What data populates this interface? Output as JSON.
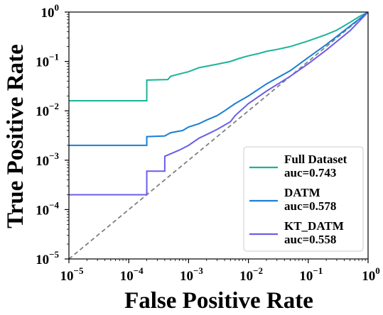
{
  "chart_data": {
    "type": "line",
    "xscale": "log",
    "yscale": "log",
    "xlim": [
      1e-05,
      1
    ],
    "ylim": [
      1e-05,
      1
    ],
    "xlabel": "False Positive Rate",
    "ylabel": "True Positive Rate",
    "tick_values": [
      1e-05,
      0.0001,
      0.001,
      0.01,
      0.1,
      1
    ],
    "tick_labels": [
      {
        "base": "10",
        "exp": "−5"
      },
      {
        "base": "10",
        "exp": "−4"
      },
      {
        "base": "10",
        "exp": "−3"
      },
      {
        "base": "10",
        "exp": "−2"
      },
      {
        "base": "10",
        "exp": "−1"
      },
      {
        "base": "10",
        "exp": "0"
      }
    ],
    "grid": false,
    "legend_position": "bottom-right",
    "diagonal": {
      "style": "dashed",
      "color": "#808080",
      "points": [
        [
          1e-05,
          1e-05
        ],
        [
          1,
          1
        ]
      ]
    },
    "series": [
      {
        "name": "Full Dataset",
        "auc_label": "auc=0.743",
        "color": "#1ab39a",
        "points": [
          [
            1e-05,
            0.016
          ],
          [
            0.0002,
            0.016
          ],
          [
            0.0002,
            0.042
          ],
          [
            0.00045,
            0.043
          ],
          [
            0.0005,
            0.05
          ],
          [
            0.0008,
            0.058
          ],
          [
            0.001,
            0.062
          ],
          [
            0.0015,
            0.075
          ],
          [
            0.002,
            0.08
          ],
          [
            0.003,
            0.088
          ],
          [
            0.005,
            0.1
          ],
          [
            0.007,
            0.115
          ],
          [
            0.01,
            0.13
          ],
          [
            0.015,
            0.145
          ],
          [
            0.02,
            0.16
          ],
          [
            0.03,
            0.175
          ],
          [
            0.05,
            0.2
          ],
          [
            0.1,
            0.26
          ],
          [
            0.2,
            0.35
          ],
          [
            0.3,
            0.43
          ],
          [
            0.5,
            0.62
          ],
          [
            0.7,
            0.8
          ],
          [
            1,
            1
          ]
        ]
      },
      {
        "name": "DATM",
        "auc_label": "auc=0.578",
        "color": "#1a7fd4",
        "points": [
          [
            1e-05,
            0.002
          ],
          [
            0.0002,
            0.002
          ],
          [
            0.0002,
            0.003
          ],
          [
            0.0004,
            0.0031
          ],
          [
            0.0005,
            0.0036
          ],
          [
            0.0008,
            0.004
          ],
          [
            0.001,
            0.0047
          ],
          [
            0.0015,
            0.0055
          ],
          [
            0.002,
            0.0065
          ],
          [
            0.003,
            0.008
          ],
          [
            0.004,
            0.01
          ],
          [
            0.006,
            0.014
          ],
          [
            0.01,
            0.02
          ],
          [
            0.02,
            0.035
          ],
          [
            0.05,
            0.065
          ],
          [
            0.1,
            0.12
          ],
          [
            0.2,
            0.22
          ],
          [
            0.5,
            0.52
          ],
          [
            1,
            1
          ]
        ]
      },
      {
        "name": "KT_DATM",
        "auc_label": "auc=0.558",
        "color": "#6b5de8",
        "points": [
          [
            1e-05,
            0.0002
          ],
          [
            0.0002,
            0.0002
          ],
          [
            0.0002,
            0.0006
          ],
          [
            0.0004,
            0.0006
          ],
          [
            0.0004,
            0.0012
          ],
          [
            0.0007,
            0.0016
          ],
          [
            0.001,
            0.002
          ],
          [
            0.0015,
            0.0028
          ],
          [
            0.002,
            0.0033
          ],
          [
            0.003,
            0.0042
          ],
          [
            0.005,
            0.006
          ],
          [
            0.006,
            0.008
          ],
          [
            0.01,
            0.014
          ],
          [
            0.02,
            0.025
          ],
          [
            0.05,
            0.05
          ],
          [
            0.1,
            0.09
          ],
          [
            0.2,
            0.17
          ],
          [
            0.5,
            0.42
          ],
          [
            1,
            1
          ]
        ]
      }
    ]
  }
}
